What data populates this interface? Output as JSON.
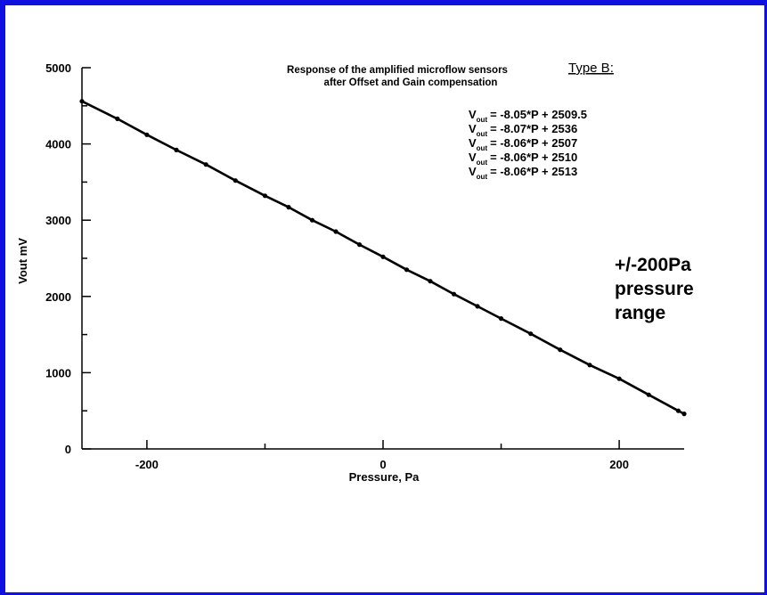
{
  "colors": {
    "frame": "#1010e0",
    "line": "#000000",
    "background": "#ffffff"
  },
  "chart_data": {
    "type": "line",
    "title": [
      "Response of the amplified microflow sensors",
      "after Offset and Gain compensation"
    ],
    "type_label": "Type B:",
    "xlabel": "Pressure,  Pa",
    "ylabel": "Vout mV",
    "xlim": [
      -255,
      255
    ],
    "ylim": [
      0,
      5000
    ],
    "x_tick_labels": [
      {
        "value": -200,
        "label": "-200"
      },
      {
        "value": 0,
        "label": "0"
      },
      {
        "value": 200,
        "label": "200"
      }
    ],
    "y_tick_labels": [
      {
        "value": 0,
        "label": "0"
      },
      {
        "value": 1000,
        "label": "1000"
      },
      {
        "value": 2000,
        "label": "2000"
      },
      {
        "value": 3000,
        "label": "3000"
      },
      {
        "value": 4000,
        "label": "4000"
      },
      {
        "value": 5000,
        "label": "5000"
      }
    ],
    "x_minor_ticks": [
      -100,
      100
    ],
    "y_minor_ticks": [
      500,
      1500,
      2500,
      3500,
      4500
    ],
    "equations": [
      {
        "prefix": "V",
        "subscript": "out",
        "text": "= -8.05*P + 2509.5"
      },
      {
        "prefix": "V",
        "subscript": "out",
        "text": "= -8.07*P + 2536"
      },
      {
        "prefix": "V",
        "subscript": "out",
        "text": "= -8.06*P + 2507"
      },
      {
        "prefix": "V",
        "subscript": "out",
        "text": "= -8.06*P + 2510"
      },
      {
        "prefix": "V",
        "subscript": "out",
        "text": "= -8.06*P + 2513"
      }
    ],
    "annotation": [
      "+/-200Pa",
      "pressure",
      "range"
    ],
    "series": [
      {
        "x": [
          -255,
          -225,
          -200,
          -175,
          -150,
          -125,
          -100,
          -80,
          -60,
          -40,
          -20,
          0,
          20,
          40,
          60,
          80,
          100,
          125,
          150,
          175,
          200,
          225,
          250,
          255
        ],
        "y": [
          4560,
          4330,
          4120,
          3920,
          3730,
          3520,
          3320,
          3170,
          3000,
          2850,
          2680,
          2520,
          2350,
          2200,
          2030,
          1870,
          1710,
          1510,
          1300,
          1100,
          920,
          710,
          500,
          460
        ]
      }
    ]
  }
}
